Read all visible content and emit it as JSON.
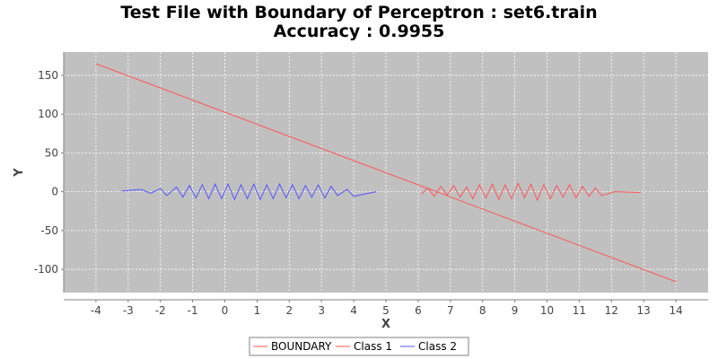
{
  "chart_data": {
    "type": "line",
    "title": "Test File with Boundary of Perceptron : set6.train",
    "subtitle": "Accuracy : 0.9955",
    "xlabel": "X",
    "ylabel": "Y",
    "xlim": [
      -5,
      15
    ],
    "ylim": [
      -130,
      180
    ],
    "x_ticks": [
      -4,
      -3,
      -2,
      -1,
      0,
      1,
      2,
      3,
      4,
      5,
      6,
      7,
      8,
      9,
      10,
      11,
      12,
      13,
      14
    ],
    "y_ticks": [
      150,
      100,
      50,
      0,
      -50,
      -100
    ],
    "grid": true,
    "legend_position": "bottom",
    "series": [
      {
        "name": "BOUNDARY",
        "color": "#ff5555",
        "x": [
          -4,
          14
        ],
        "y": [
          165,
          -116
        ]
      },
      {
        "name": "Class 1",
        "color": "#ff5555",
        "x": [
          6.1,
          6.3,
          6.5,
          6.7,
          6.9,
          7.1,
          7.3,
          7.5,
          7.7,
          7.9,
          8.1,
          8.3,
          8.5,
          8.7,
          8.9,
          9.1,
          9.3,
          9.5,
          9.7,
          9.9,
          10.1,
          10.3,
          10.5,
          10.7,
          10.9,
          11.1,
          11.3,
          11.5,
          11.7,
          12.1,
          12.9
        ],
        "y": [
          -3,
          5,
          -6,
          7,
          -4,
          8,
          -7,
          6,
          -9,
          9,
          -8,
          10,
          -10,
          9,
          -9,
          11,
          -8,
          10,
          -11,
          9,
          -9,
          8,
          -7,
          9,
          -8,
          7,
          -6,
          5,
          -5,
          0,
          -1
        ]
      },
      {
        "name": "Class 2",
        "color": "#5555ff",
        "x": [
          -3.2,
          -2.6,
          -2.3,
          -2.0,
          -1.8,
          -1.5,
          -1.3,
          -1.1,
          -0.9,
          -0.7,
          -0.5,
          -0.3,
          -0.1,
          0.1,
          0.3,
          0.5,
          0.7,
          0.9,
          1.1,
          1.3,
          1.5,
          1.7,
          1.9,
          2.1,
          2.3,
          2.5,
          2.7,
          2.9,
          3.1,
          3.3,
          3.5,
          3.8,
          4.0,
          4.7
        ],
        "y": [
          1,
          3,
          -2,
          4,
          -5,
          6,
          -7,
          8,
          -8,
          9,
          -9,
          10,
          -9,
          10,
          -10,
          9,
          -9,
          10,
          -10,
          9,
          -9,
          10,
          -8,
          9,
          -9,
          8,
          -7,
          9,
          -8,
          7,
          -5,
          3,
          -6,
          0
        ]
      }
    ]
  }
}
